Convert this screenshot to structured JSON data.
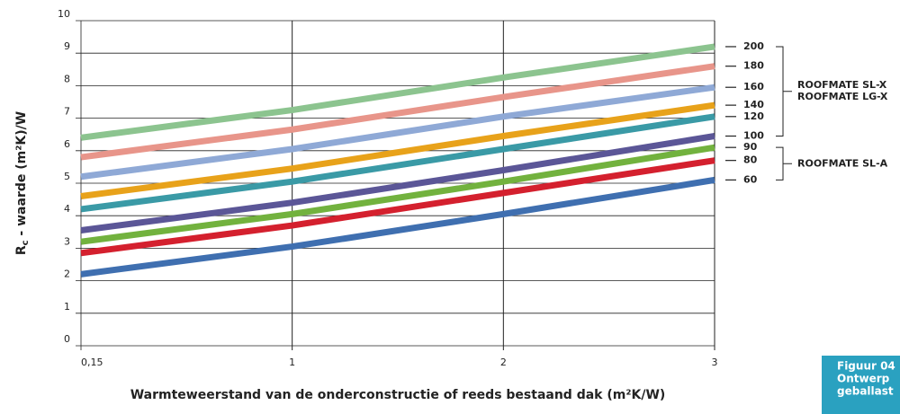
{
  "chart_data": {
    "type": "line",
    "ylabel": {
      "base": "R",
      "sub": "c",
      "rest": " - waarde (m²K)/W"
    },
    "xlabel": "Warmteweerstand van de onderconstructie of reeds bestaand dak (m²K/W)",
    "categories": [
      "0,15",
      "1",
      "2",
      "3"
    ],
    "ylim": [
      0,
      10
    ],
    "yticks": [
      0,
      1,
      2,
      3,
      4,
      5,
      6,
      7,
      8,
      9,
      10
    ],
    "grid": true,
    "series": [
      {
        "name": "200",
        "color": "#8cc48f",
        "values": [
          6.4,
          7.25,
          8.25,
          9.2
        ]
      },
      {
        "name": "180",
        "color": "#e8958a",
        "values": [
          5.8,
          6.65,
          7.65,
          8.6
        ]
      },
      {
        "name": "160",
        "color": "#8fa9d6",
        "values": [
          5.2,
          6.05,
          7.05,
          7.95
        ]
      },
      {
        "name": "140",
        "color": "#e8a21a",
        "values": [
          4.6,
          5.45,
          6.45,
          7.4
        ]
      },
      {
        "name": "120",
        "color": "#3a9aa6",
        "values": [
          4.2,
          5.05,
          6.05,
          7.05
        ]
      },
      {
        "name": "100",
        "color": "#5b5697",
        "values": [
          3.55,
          4.4,
          5.4,
          6.45
        ]
      },
      {
        "name": "90",
        "color": "#72b23e",
        "values": [
          3.2,
          4.05,
          5.05,
          6.1
        ]
      },
      {
        "name": "80",
        "color": "#d4202e",
        "values": [
          2.85,
          3.7,
          4.7,
          5.7
        ]
      },
      {
        "name": "60",
        "color": "#3f6fb0",
        "values": [
          2.2,
          3.05,
          4.05,
          5.1
        ]
      }
    ],
    "groups": [
      {
        "lines": [
          "ROOFMATE SL-X",
          "ROOFMATE LG-X"
        ]
      },
      {
        "lines": [
          "ROOFMATE SL-A"
        ]
      }
    ],
    "caption_lines": [
      "Figuur 04",
      "Ontwerp",
      "geballast"
    ]
  }
}
